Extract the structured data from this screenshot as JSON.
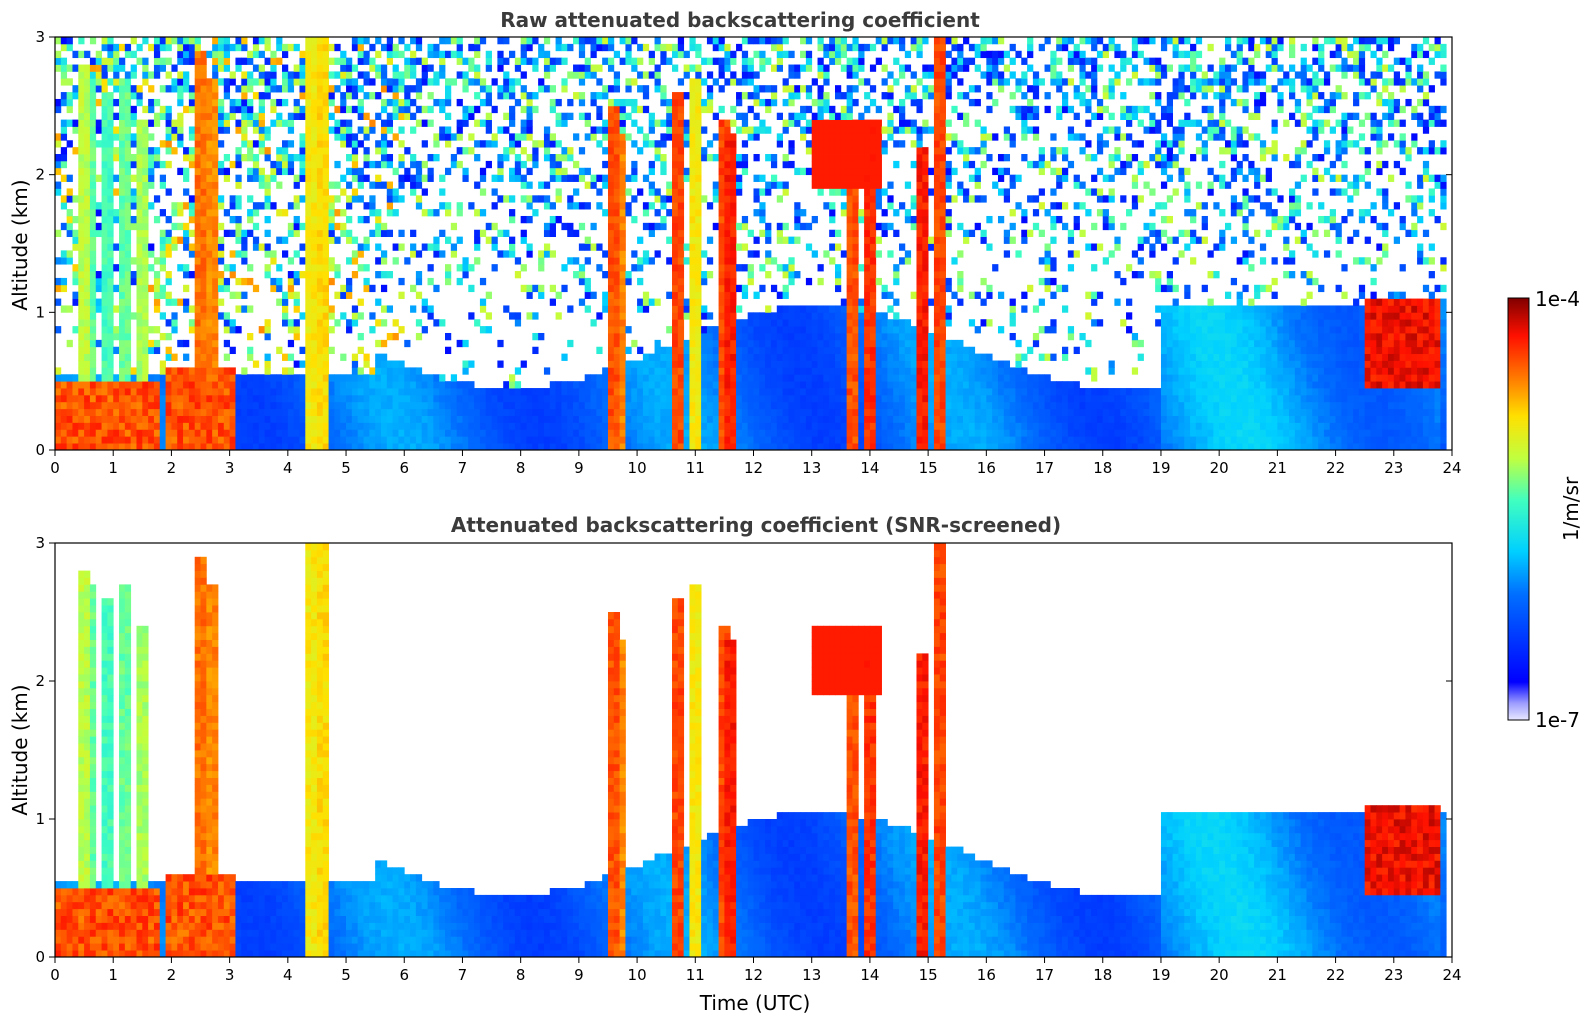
{
  "chart_data": [
    {
      "type": "heatmap",
      "title": "Raw attenuated backscattering coefficient",
      "xlabel": "",
      "ylabel": "Altitude (km)",
      "xlim": [
        0,
        24
      ],
      "ylim": [
        0,
        3
      ],
      "x_ticks": [
        "0",
        "1",
        "2",
        "3",
        "4",
        "5",
        "6",
        "7",
        "8",
        "9",
        "10",
        "11",
        "12",
        "13",
        "14",
        "15",
        "16",
        "17",
        "18",
        "19",
        "20",
        "21",
        "22",
        "23",
        "24"
      ],
      "y_ticks": [
        "0",
        "1",
        "2",
        "3"
      ],
      "screened": false,
      "grid": false
    },
    {
      "type": "heatmap",
      "title": "Attenuated backscattering coefficient (SNR-screened)",
      "xlabel": "Time (UTC)",
      "ylabel": "Altitude (km)",
      "xlim": [
        0,
        24
      ],
      "ylim": [
        0,
        3
      ],
      "x_ticks": [
        "0",
        "1",
        "2",
        "3",
        "4",
        "5",
        "6",
        "7",
        "8",
        "9",
        "10",
        "11",
        "12",
        "13",
        "14",
        "15",
        "16",
        "17",
        "18",
        "19",
        "20",
        "21",
        "22",
        "23",
        "24"
      ],
      "y_ticks": [
        "0",
        "1",
        "2",
        "3"
      ],
      "screened": true,
      "grid": false
    }
  ],
  "colorbar": {
    "label": "1/m/sr",
    "max_label": "1e-4",
    "min_label": "1e-7",
    "colormap": "jet",
    "scale": "log"
  }
}
